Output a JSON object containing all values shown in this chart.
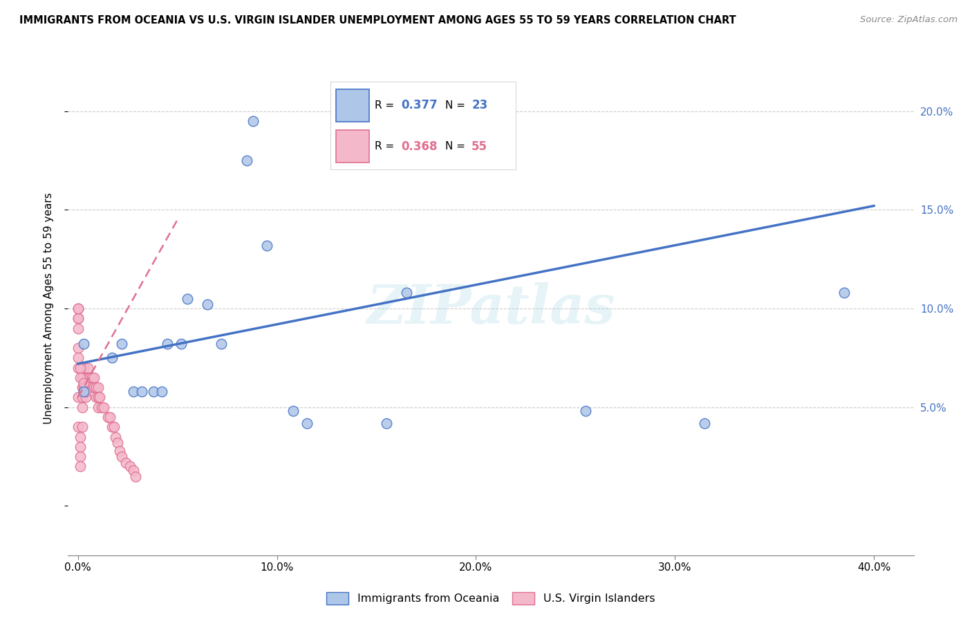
{
  "title": "IMMIGRANTS FROM OCEANIA VS U.S. VIRGIN ISLANDER UNEMPLOYMENT AMONG AGES 55 TO 59 YEARS CORRELATION CHART",
  "source": "Source: ZipAtlas.com",
  "ylabel": "Unemployment Among Ages 55 to 59 years",
  "x_ticks": [
    0.0,
    0.1,
    0.2,
    0.3,
    0.4
  ],
  "x_tick_labels": [
    "0.0%",
    "10.0%",
    "20.0%",
    "30.0%",
    "40.0%"
  ],
  "y_ticks": [
    0.0,
    0.05,
    0.1,
    0.15,
    0.2
  ],
  "y_tick_labels_right": [
    "",
    "5.0%",
    "10.0%",
    "15.0%",
    "20.0%"
  ],
  "xlim": [
    -0.005,
    0.42
  ],
  "ylim": [
    -0.025,
    0.225
  ],
  "legend_r_blue": "R = 0.377",
  "legend_n_blue": "N = 23",
  "legend_r_pink": "R = 0.368",
  "legend_n_pink": "N = 55",
  "legend_label_blue": "Immigrants from Oceania",
  "legend_label_pink": "U.S. Virgin Islanders",
  "blue_color": "#aec6e8",
  "blue_line_color": "#4472c4",
  "pink_color": "#f4b8cb",
  "pink_line_color": "#e07090",
  "watermark": "ZIPatlas",
  "blue_line_x0": 0.0,
  "blue_line_y0": 0.072,
  "blue_line_x1": 0.4,
  "blue_line_y1": 0.152,
  "pink_line_x0": 0.0,
  "pink_line_y0": 0.055,
  "pink_line_x1": 0.05,
  "pink_line_y1": 0.145,
  "blue_scatter_x": [
    0.003,
    0.003,
    0.017,
    0.022,
    0.028,
    0.032,
    0.038,
    0.042,
    0.045,
    0.052,
    0.055,
    0.065,
    0.072,
    0.085,
    0.088,
    0.095,
    0.108,
    0.115,
    0.155,
    0.165,
    0.255,
    0.315,
    0.385
  ],
  "blue_scatter_y": [
    0.082,
    0.058,
    0.075,
    0.082,
    0.058,
    0.058,
    0.058,
    0.058,
    0.082,
    0.082,
    0.105,
    0.102,
    0.082,
    0.175,
    0.195,
    0.132,
    0.048,
    0.042,
    0.042,
    0.108,
    0.048,
    0.042,
    0.108
  ],
  "pink_scatter_x": [
    0.0,
    0.0,
    0.0,
    0.0,
    0.0,
    0.0,
    0.0,
    0.001,
    0.001,
    0.001,
    0.001,
    0.002,
    0.002,
    0.002,
    0.002,
    0.002,
    0.003,
    0.003,
    0.003,
    0.004,
    0.004,
    0.005,
    0.005,
    0.006,
    0.006,
    0.007,
    0.008,
    0.008,
    0.009,
    0.009,
    0.01,
    0.01,
    0.01,
    0.011,
    0.012,
    0.013,
    0.015,
    0.016,
    0.017,
    0.018,
    0.019,
    0.02,
    0.021,
    0.022,
    0.024,
    0.026,
    0.028,
    0.029,
    0.0,
    0.0,
    0.0,
    0.001,
    0.001,
    0.003,
    0.004
  ],
  "pink_scatter_y": [
    0.09,
    0.095,
    0.095,
    0.1,
    0.1,
    0.055,
    0.04,
    0.035,
    0.03,
    0.025,
    0.02,
    0.065,
    0.06,
    0.055,
    0.05,
    0.04,
    0.07,
    0.065,
    0.06,
    0.06,
    0.055,
    0.07,
    0.065,
    0.065,
    0.06,
    0.065,
    0.065,
    0.06,
    0.06,
    0.055,
    0.06,
    0.055,
    0.05,
    0.055,
    0.05,
    0.05,
    0.045,
    0.045,
    0.04,
    0.04,
    0.035,
    0.032,
    0.028,
    0.025,
    0.022,
    0.02,
    0.018,
    0.015,
    0.08,
    0.075,
    0.07,
    0.07,
    0.065,
    0.062,
    0.058
  ]
}
